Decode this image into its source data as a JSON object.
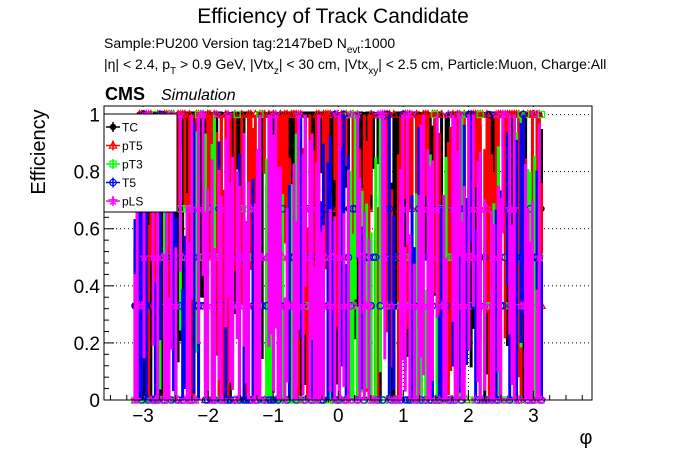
{
  "chart_data": {
    "type": "scatter",
    "title": "Efficiency of Track Candidate",
    "info_line1": "Sample:PU200   Version tag:2147beD  N",
    "info_line1_sub": "evt",
    "info_line1_end": ":1000",
    "info_line2": {
      "a": "|η| < 2.4, p",
      "a_sub": "T",
      "b": " > 0.9 GeV, |Vtx",
      "b_sub": "z",
      "c": "| < 30 cm, |Vtx",
      "c_sub": "xy",
      "d": "| < 2.5 cm, Particle:Muon, Charge:All"
    },
    "cms_label": "CMS",
    "sim_label": "Simulation",
    "xlabel": "φ",
    "ylabel": "Efficiency",
    "xlim": [
      -3.6,
      3.9
    ],
    "ylim": [
      0,
      1.03
    ],
    "x_ticks": [
      -3,
      -2,
      -1,
      0,
      1,
      2,
      3
    ],
    "x_tick_labels": [
      "−3",
      "−2",
      "−1",
      "0",
      "1",
      "2",
      "3"
    ],
    "y_ticks": [
      0,
      0.2,
      0.4,
      0.6,
      0.8,
      1
    ],
    "y_tick_labels": [
      "0",
      "0.2",
      "0.4",
      "0.6",
      "0.8",
      "1"
    ],
    "grid": true,
    "legend_position": "top-left",
    "series": [
      {
        "name": "TC",
        "color": "#000000",
        "marker": "filled-circle"
      },
      {
        "name": "pT5",
        "color": "#ff0000",
        "marker": "open-triangle"
      },
      {
        "name": "pT3",
        "color": "#00ff00",
        "marker": "open-square"
      },
      {
        "name": "T5",
        "color": "#0000ff",
        "marker": "open-circle"
      },
      {
        "name": "pLS",
        "color": "#ff00ff",
        "marker": "open-star"
      }
    ]
  }
}
